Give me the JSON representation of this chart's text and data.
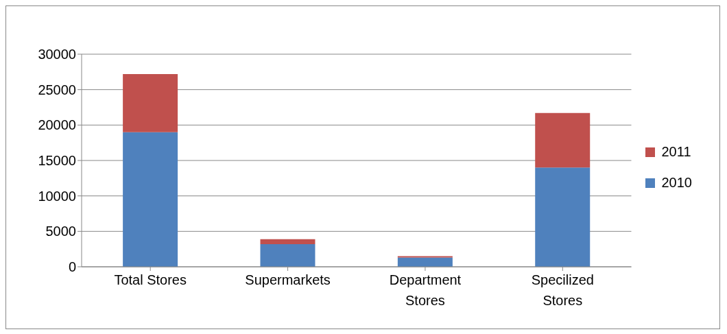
{
  "chart_data": {
    "type": "bar",
    "stacked": true,
    "categories": [
      "Total Stores",
      "Supermarkets",
      "Department Stores",
      "Specilized Stores"
    ],
    "series": [
      {
        "name": "2010",
        "color": "#4f81bd",
        "values": [
          19000,
          3200,
          1300,
          14000
        ]
      },
      {
        "name": "2011",
        "color": "#c0504d",
        "values": [
          8200,
          700,
          200,
          7700
        ]
      }
    ],
    "ylim": [
      0,
      30000
    ],
    "yticks": [
      0,
      5000,
      10000,
      15000,
      20000,
      25000,
      30000
    ],
    "grid": "y",
    "legend": "right"
  }
}
